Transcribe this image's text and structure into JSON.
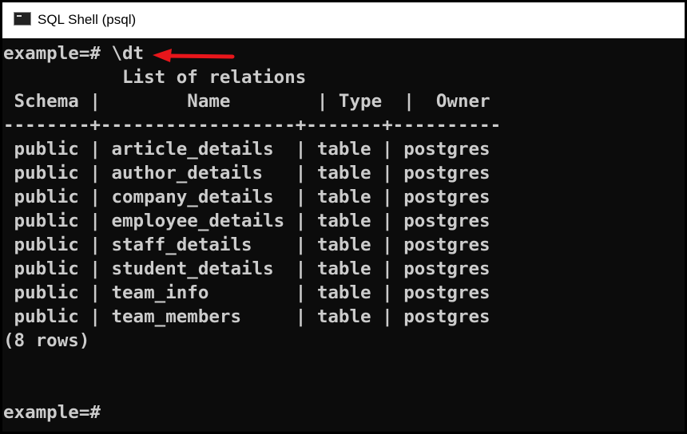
{
  "window": {
    "title": "SQL Shell (psql)",
    "icon": "terminal-icon"
  },
  "terminal": {
    "lines": [
      "example=# \\dt",
      "           List of relations",
      " Schema |        Name        | Type  |  Owner",
      "--------+------------------+-------+----------",
      " public | article_details  | table | postgres",
      " public | author_details   | table | postgres",
      " public | company_details  | table | postgres",
      " public | employee_details | table | postgres",
      " public | staff_details    | table | postgres",
      " public | student_details  | table | postgres",
      " public | team_info        | table | postgres",
      " public | team_members     | table | postgres",
      "(8 rows)",
      "",
      "",
      "example=#"
    ]
  },
  "annotation": {
    "arrow_color": "#e8161b",
    "icon": "red-arrow-icon"
  }
}
